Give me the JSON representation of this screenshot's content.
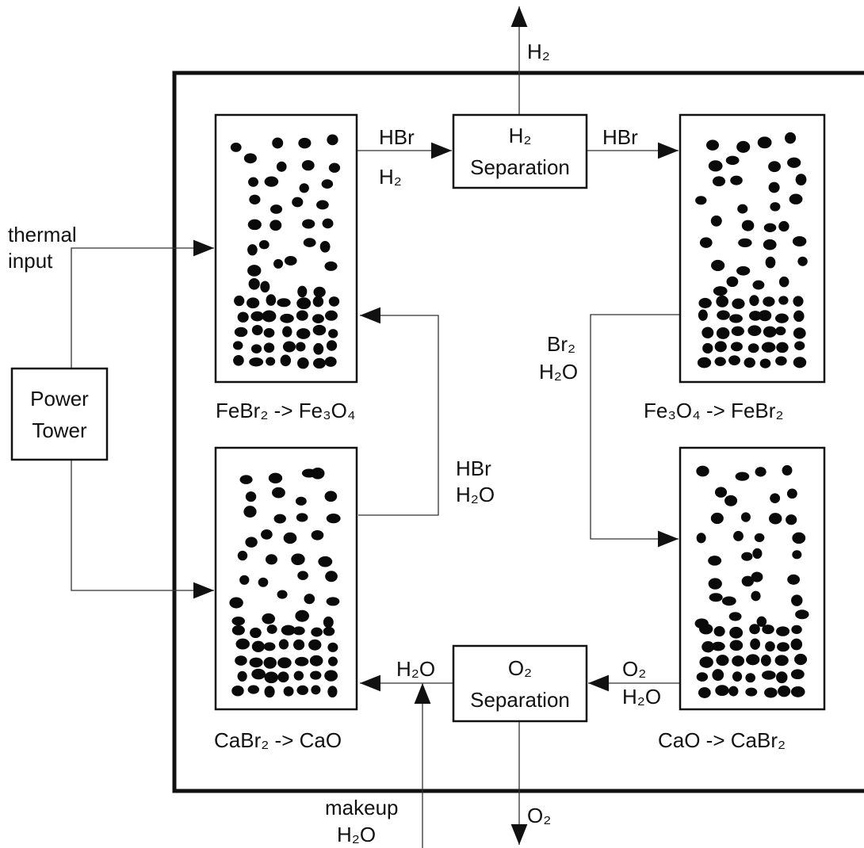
{
  "streams": {
    "h2_out": "H₂",
    "hbr_top_left": "HBr",
    "h2_top_left": "H₂",
    "hbr_top_right": "HBr",
    "thermal": "thermal",
    "input": "input",
    "hbr_mid": "HBr",
    "h2o_mid": "H₂O",
    "br2": "Br₂",
    "h2o_right": "H₂O",
    "o2_right": "O₂",
    "h2o_bottom_right": "H₂O",
    "h2o_bottom_left": "H₂O",
    "makeup": "makeup",
    "makeup_h2o": "H₂O",
    "o2_out": "O₂"
  },
  "units": {
    "h2_separation": [
      "H₂",
      "Separation"
    ],
    "o2_separation": [
      "O₂",
      "Separation"
    ],
    "power_tower": [
      "Power",
      "Tower"
    ]
  },
  "reactors": [
    "FeBr₂ -> Fe₃O₄",
    "Fe₃O₄ -> FeBr₂",
    "CaBr₂ -> CaO",
    "CaO -> CaBr₂"
  ]
}
